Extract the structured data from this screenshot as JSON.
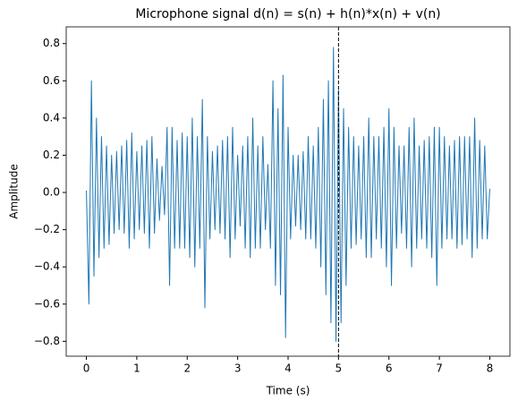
{
  "chart_data": {
    "type": "line",
    "title": "Microphone signal d(n) = s(n) + h(n)*x(n) + v(n)",
    "xlabel": "Time (s)",
    "ylabel": "Amplitude",
    "x": [
      0,
      0.05,
      0.1,
      0.15,
      0.2,
      0.25,
      0.3,
      0.35,
      0.4,
      0.45,
      0.5,
      0.55,
      0.6,
      0.65,
      0.7,
      0.75,
      0.8,
      0.85,
      0.9,
      0.95,
      1,
      1.05,
      1.1,
      1.15,
      1.2,
      1.25,
      1.3,
      1.35,
      1.4,
      1.45,
      1.5,
      1.55,
      1.6,
      1.65,
      1.7,
      1.75,
      1.8,
      1.85,
      1.9,
      1.95,
      2,
      2.05,
      2.1,
      2.15,
      2.2,
      2.25,
      2.3,
      2.35,
      2.4,
      2.45,
      2.5,
      2.55,
      2.6,
      2.65,
      2.7,
      2.75,
      2.8,
      2.85,
      2.9,
      2.95,
      3,
      3.05,
      3.1,
      3.15,
      3.2,
      3.25,
      3.3,
      3.35,
      3.4,
      3.45,
      3.5,
      3.55,
      3.6,
      3.65,
      3.7,
      3.75,
      3.8,
      3.85,
      3.9,
      3.95,
      4,
      4.05,
      4.1,
      4.15,
      4.2,
      4.25,
      4.3,
      4.35,
      4.4,
      4.45,
      4.5,
      4.55,
      4.6,
      4.65,
      4.7,
      4.75,
      4.8,
      4.85,
      4.9,
      4.95,
      5,
      5.05,
      5.1,
      5.15,
      5.2,
      5.25,
      5.3,
      5.35,
      5.4,
      5.45,
      5.5,
      5.55,
      5.6,
      5.65,
      5.7,
      5.75,
      5.8,
      5.85,
      5.9,
      5.95,
      6,
      6.05,
      6.1,
      6.15,
      6.2,
      6.25,
      6.3,
      6.35,
      6.4,
      6.45,
      6.5,
      6.55,
      6.6,
      6.65,
      6.7,
      6.75,
      6.8,
      6.85,
      6.9,
      6.95,
      7,
      7.05,
      7.1,
      7.15,
      7.2,
      7.25,
      7.3,
      7.35,
      7.4,
      7.45,
      7.5,
      7.55,
      7.6,
      7.65,
      7.7,
      7.75,
      7.8,
      7.85,
      7.9,
      7.95,
      8
    ],
    "values": [
      0.01,
      -0.6,
      0.6,
      -0.45,
      0.4,
      -0.35,
      0.3,
      -0.3,
      0.25,
      -0.28,
      0.2,
      -0.22,
      0.22,
      -0.2,
      0.25,
      -0.22,
      0.28,
      -0.3,
      0.32,
      -0.25,
      0.22,
      -0.2,
      0.25,
      -0.22,
      0.28,
      -0.3,
      0.3,
      -0.22,
      0.18,
      -0.15,
      0.14,
      -0.12,
      0.35,
      -0.5,
      0.35,
      -0.3,
      0.28,
      -0.3,
      0.32,
      -0.3,
      0.3,
      -0.35,
      0.4,
      -0.4,
      0.3,
      -0.3,
      0.5,
      -0.62,
      0.3,
      -0.25,
      0.22,
      -0.2,
      0.25,
      -0.22,
      0.28,
      -0.25,
      0.3,
      -0.35,
      0.35,
      -0.25,
      0.2,
      -0.18,
      0.25,
      -0.3,
      0.3,
      -0.35,
      0.4,
      -0.3,
      0.25,
      -0.3,
      0.3,
      -0.2,
      0.15,
      -0.3,
      0.6,
      -0.5,
      0.45,
      -0.55,
      0.63,
      -0.78,
      0.35,
      -0.25,
      0.2,
      -0.18,
      0.2,
      -0.2,
      0.22,
      -0.25,
      0.3,
      -0.25,
      0.25,
      -0.3,
      0.35,
      -0.4,
      0.5,
      -0.55,
      0.6,
      -0.7,
      0.78,
      -0.8,
      0.55,
      -0.7,
      0.45,
      -0.5,
      0.35,
      -0.3,
      0.3,
      -0.28,
      0.25,
      -0.25,
      0.3,
      -0.35,
      0.4,
      -0.35,
      0.3,
      -0.25,
      0.3,
      -0.3,
      0.35,
      -0.4,
      0.45,
      -0.5,
      0.35,
      -0.3,
      0.25,
      -0.22,
      0.25,
      -0.3,
      0.35,
      -0.4,
      0.4,
      -0.3,
      0.25,
      -0.25,
      0.28,
      -0.3,
      0.3,
      -0.35,
      0.35,
      -0.5,
      0.35,
      -0.3,
      0.3,
      -0.25,
      0.25,
      -0.25,
      0.28,
      -0.3,
      0.3,
      -0.28,
      0.3,
      -0.25,
      0.3,
      -0.35,
      0.4,
      -0.3,
      0.28,
      -0.25,
      0.25,
      -0.25,
      0.02
    ],
    "color": "#1f77b4",
    "xlim": [
      -0.4,
      8.4
    ],
    "ylim": [
      -0.88,
      0.89
    ],
    "xticks": [
      0,
      1,
      2,
      3,
      4,
      5,
      6,
      7,
      8
    ],
    "yticks": [
      {
        "value": -0.8,
        "label": "−0.8"
      },
      {
        "value": -0.6,
        "label": "−0.6"
      },
      {
        "value": -0.4,
        "label": "−0.4"
      },
      {
        "value": -0.2,
        "label": "−0.2"
      },
      {
        "value": 0,
        "label": "0.0"
      },
      0.2,
      0.4,
      0.6,
      0.8
    ],
    "vline": 5,
    "vline_color": "#000000"
  }
}
